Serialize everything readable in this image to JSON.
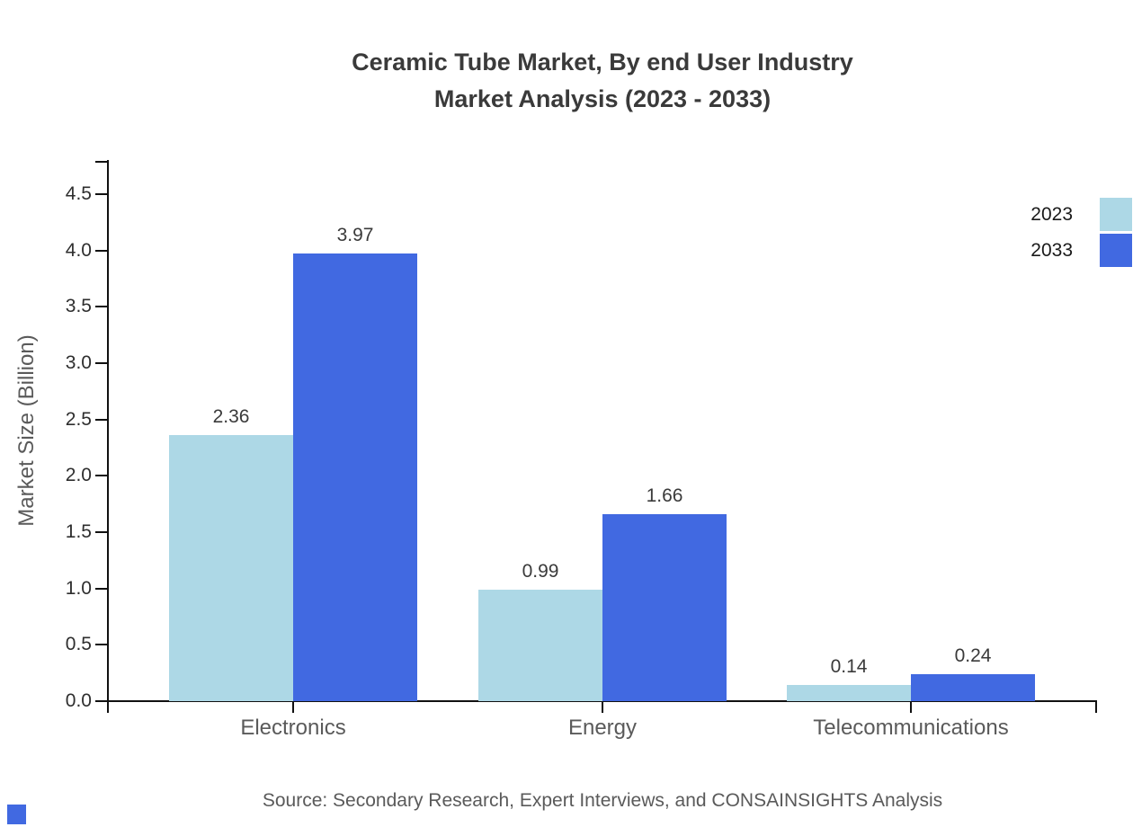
{
  "title": {
    "line1": "Ceramic Tube Market, By end User Industry",
    "line2": "Market Analysis (2023 - 2033)"
  },
  "source_note": "Source: Secondary Research, Expert Interviews, and CONSAINSIGHTS Analysis",
  "colors": {
    "series_2023": "#ADD8E6",
    "series_2033": "#4169E1",
    "axis": "#111111",
    "title_text": "#3a3a3a",
    "muted_text": "#5a5a5a"
  },
  "chart_data": {
    "type": "bar",
    "title": "Ceramic Tube Market, By end User Industry Market Analysis (2023 - 2033)",
    "categories": [
      "Electronics",
      "Energy",
      "Telecommunications"
    ],
    "series": [
      {
        "name": "2023",
        "color": "#ADD8E6",
        "values": [
          2.36,
          0.99,
          0.14
        ]
      },
      {
        "name": "2033",
        "color": "#4169E1",
        "values": [
          3.97,
          1.66,
          0.24
        ]
      }
    ],
    "xlabel": "",
    "ylabel": "Market Size (Billion)",
    "ylim": [
      0,
      4.75
    ],
    "yticks": [
      0.0,
      0.5,
      1.0,
      1.5,
      2.0,
      2.5,
      3.0,
      3.5,
      4.0,
      4.5
    ],
    "grid": false,
    "legend_position": "right-edge",
    "value_labels": true
  }
}
